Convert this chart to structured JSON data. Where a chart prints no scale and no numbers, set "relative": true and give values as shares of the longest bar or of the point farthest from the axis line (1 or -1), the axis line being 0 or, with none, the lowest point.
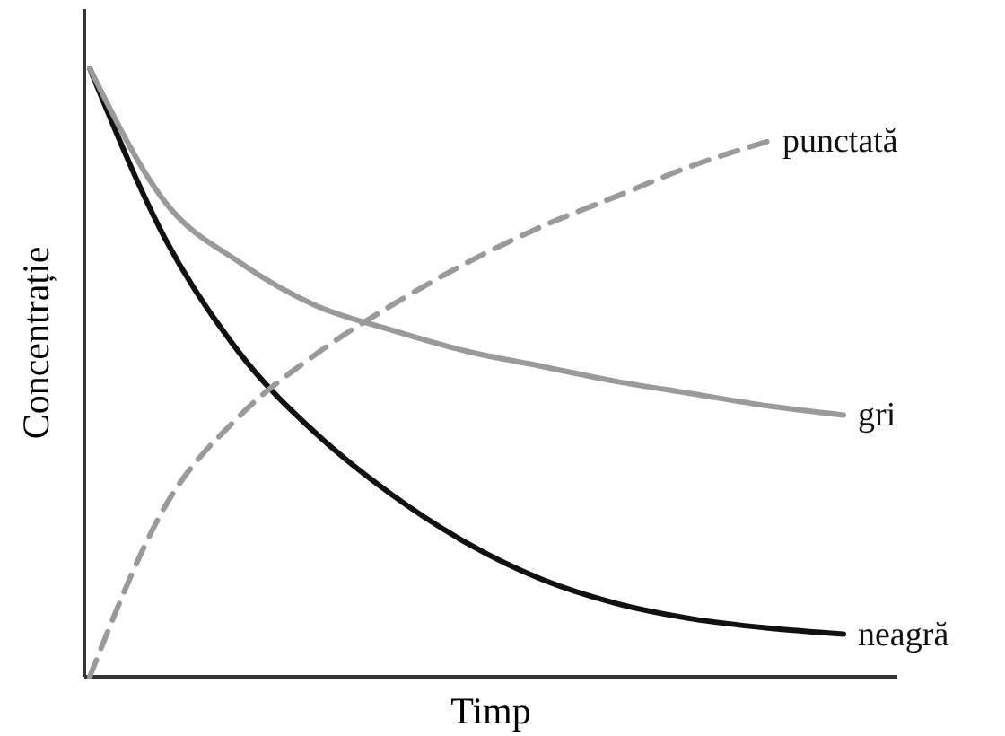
{
  "chart_data": {
    "type": "line",
    "relative": true,
    "xlabel": "Timp",
    "ylabel": "Concentrație",
    "categories": [
      null,
      null,
      null,
      null,
      null,
      null,
      null,
      null,
      null,
      null,
      null
    ],
    "series": [
      {
        "name": "neagră",
        "color": "#111111",
        "line_style": "solid",
        "values": [
          1.0,
          0.72,
          0.53,
          0.4,
          0.3,
          0.22,
          0.16,
          0.12,
          0.095,
          0.08,
          0.07
        ]
      },
      {
        "name": "gri",
        "color": "#9a9a9a",
        "line_style": "solid",
        "values": [
          1.0,
          0.78,
          0.68,
          0.61,
          0.57,
          0.535,
          0.51,
          0.485,
          0.465,
          0.445,
          0.43
        ]
      },
      {
        "name": "punctată",
        "color": "#9a9a9a",
        "line_style": "dashed",
        "values": [
          0,
          0.28,
          0.43,
          0.53,
          0.61,
          0.68,
          0.74,
          0.79,
          0.84,
          0.88,
          null
        ]
      }
    ]
  }
}
